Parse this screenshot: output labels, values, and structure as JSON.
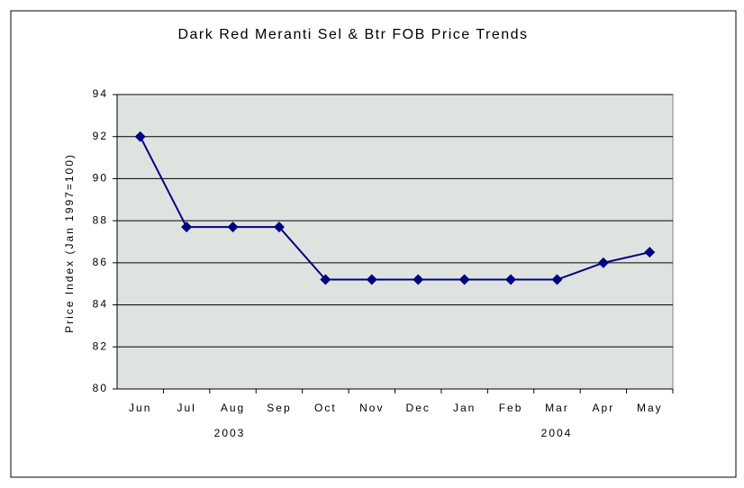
{
  "chart_data": {
    "type": "line",
    "title": "Dark Red Meranti Sel & Btr FOB Price Trends",
    "y_label": "Price Index (Jan 1997=100)",
    "categories": [
      "Jun",
      "Jul",
      "Aug",
      "Sep",
      "Oct",
      "Nov",
      "Dec",
      "Jan",
      "Feb",
      "Mar",
      "Apr",
      "May"
    ],
    "year_labels": [
      "2003",
      "2004"
    ],
    "series": [
      {
        "name": "Price Index",
        "color": "#000080",
        "values": [
          92,
          87.7,
          87.7,
          87.7,
          85.2,
          85.2,
          85.2,
          85.2,
          85.2,
          85.2,
          86,
          86.5
        ]
      }
    ],
    "ylim": [
      80,
      94
    ],
    "yticks": [
      80,
      82,
      84,
      86,
      88,
      90,
      92,
      94
    ],
    "grid": true
  }
}
